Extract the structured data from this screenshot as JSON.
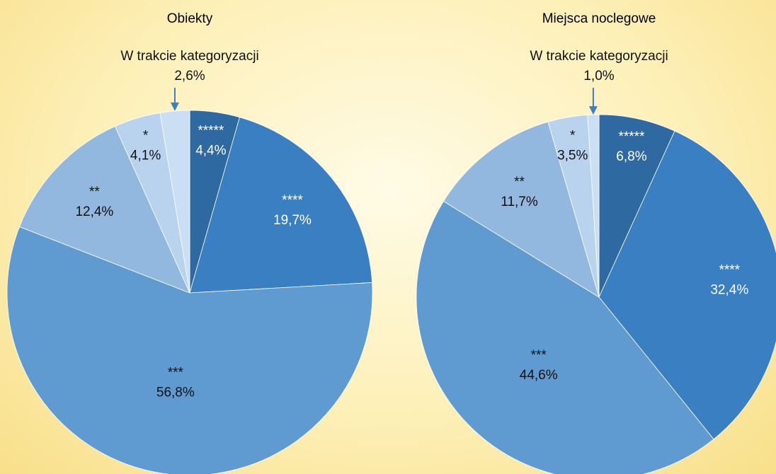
{
  "chart_data": [
    {
      "type": "pie",
      "title": "Obiekty",
      "categories": [
        "*****",
        "****",
        "***",
        "**",
        "*",
        "W trakcie kategoryzacji"
      ],
      "values": [
        4.4,
        19.7,
        56.8,
        12.4,
        4.1,
        2.6
      ],
      "value_labels": [
        "4,4%",
        "19,7%",
        "56,8%",
        "12,4%",
        "4,1%",
        "2,6%"
      ],
      "colors": [
        "#2e6aa1",
        "#3a7fc1",
        "#5f9ad0",
        "#93b8df",
        "#b9d3ee",
        "#cadff4"
      ]
    },
    {
      "type": "pie",
      "title": "Miejsca noclegowe",
      "categories": [
        "*****",
        "****",
        "***",
        "**",
        "*",
        "W trakcie kategoryzacji"
      ],
      "values": [
        6.8,
        32.4,
        44.6,
        11.7,
        3.5,
        1.0
      ],
      "value_labels": [
        "6,8%",
        "32,4%",
        "44,6%",
        "11,7%",
        "3,5%",
        "1,0%"
      ],
      "colors": [
        "#2e6aa1",
        "#3a7fc1",
        "#5f9ad0",
        "#93b8df",
        "#b9d3ee",
        "#cadff4"
      ]
    }
  ]
}
